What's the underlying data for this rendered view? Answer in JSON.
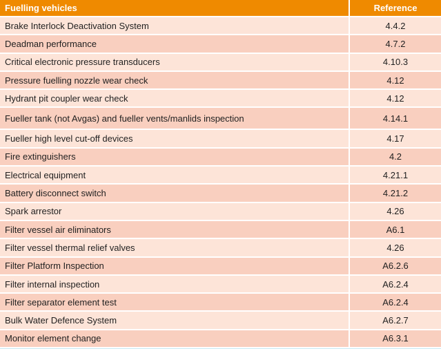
{
  "table": {
    "headers": {
      "name": "Fuelling vehicles",
      "reference": "Reference"
    },
    "rows": [
      {
        "name": "Brake Interlock Deactivation System",
        "reference": "4.4.2"
      },
      {
        "name": "Deadman performance",
        "reference": "4.7.2"
      },
      {
        "name": "Critical electronic pressure transducers",
        "reference": "4.10.3"
      },
      {
        "name": "Pressure fuelling nozzle wear check",
        "reference": "4.12"
      },
      {
        "name": "Hydrant pit coupler wear check",
        "reference": "4.12"
      },
      {
        "name": "Fueller tank (not Avgas) and fueller vents/manlids inspection",
        "reference": "4.14.1"
      },
      {
        "name": "Fueller high level cut-off devices",
        "reference": "4.17"
      },
      {
        "name": "Fire extinguishers",
        "reference": "4.2"
      },
      {
        "name": "Electrical equipment",
        "reference": "4.21.1"
      },
      {
        "name": "Battery disconnect switch",
        "reference": "4.21.2"
      },
      {
        "name": "Spark arrestor",
        "reference": "4.26"
      },
      {
        "name": "Filter vessel air eliminators",
        "reference": "A6.1"
      },
      {
        "name": "Filter vessel thermal relief valves",
        "reference": "4.26"
      },
      {
        "name": "Filter Platform Inspection",
        "reference": "A6.2.6"
      },
      {
        "name": "Filter internal inspection",
        "reference": "A6.2.4"
      },
      {
        "name": "Filter separator element test",
        "reference": "A6.2.4"
      },
      {
        "name": "Bulk Water Defence System",
        "reference": "A6.2.7"
      },
      {
        "name": "Monitor element change",
        "reference": "A6.3.1"
      }
    ]
  },
  "colors": {
    "header_bg": "#ef8a00",
    "row_odd_bg": "#fde4d8",
    "row_even_bg": "#f9cfbf",
    "footer_band": "#c9e9f3"
  }
}
